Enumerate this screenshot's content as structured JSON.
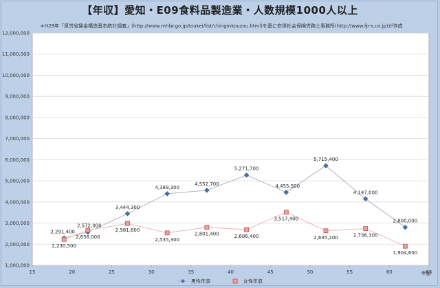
{
  "chart_data": {
    "type": "line",
    "title": "【年収】愛知・E09食料品製造業・人数規模1000人以上",
    "subtitle": "＊H28年「厚労省賃金構造基本統計調査」(http://www.mhlw.go.jp/toukei/list/chinginkouzou.html)を基に安達社会保険労務士事務所(http://www.fp-s.co.jp)が作成",
    "xlabel": "年齢",
    "ylabel": "",
    "xlim": [
      15,
      65
    ],
    "ylim": [
      1000000,
      12000000
    ],
    "x_ticks": [
      "15",
      "20",
      "25",
      "30",
      "35",
      "40",
      "45",
      "50",
      "55",
      "60",
      "65"
    ],
    "y_ticks": [
      "1,000,000",
      "2,000,000",
      "3,000,000",
      "4,000,000",
      "5,000,000",
      "6,000,000",
      "7,000,000",
      "8,000,000",
      "9,000,000",
      "10,000,000",
      "11,000,000",
      "12,000,000"
    ],
    "grid": true,
    "legend_position": "bottom",
    "series": [
      {
        "name": "男性年収",
        "color": "#4a6fa5",
        "marker": "diamond",
        "x": [
          19,
          22,
          27,
          32,
          37,
          42,
          47,
          52,
          57,
          62
        ],
        "values": [
          2291400,
          2572000,
          3444300,
          4389300,
          4552700,
          5271700,
          4455500,
          5715400,
          4147000,
          2800000
        ],
        "labels": [
          "2,291,400",
          "2,572,000",
          "3,444,300",
          "4,389,300",
          "4,552,700",
          "5,271,700",
          "4,455,500",
          "5,715,400",
          "4,147,000",
          "2,800,000"
        ]
      },
      {
        "name": "女性年収",
        "color": "#e8a3a0",
        "marker": "square",
        "x": [
          19,
          22,
          27,
          32,
          37,
          42,
          47,
          52,
          57,
          62
        ],
        "values": [
          2230500,
          2658000,
          2981600,
          2535300,
          2801400,
          2686400,
          3517400,
          2635200,
          2736300,
          1904600
        ],
        "labels": [
          "2,230,500",
          "2,658,000",
          "2,981,600",
          "2,535,300",
          "2,801,400",
          "2,686,400",
          "3,517,400",
          "2,635,200",
          "2,736,300",
          "1,904,600"
        ]
      }
    ]
  }
}
